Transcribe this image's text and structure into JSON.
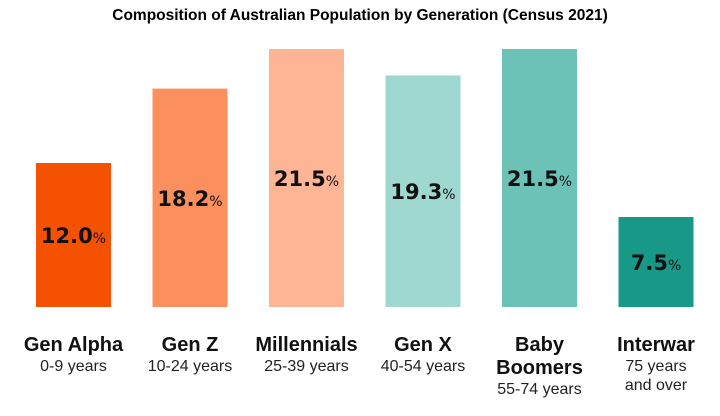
{
  "chart_data": {
    "type": "bar",
    "title": "Composition of Australian Population by Generation (Census 2021)",
    "categories": [
      "Gen Alpha",
      "Gen Z",
      "Millennials",
      "Gen X",
      "Baby Boomers",
      "Interwar"
    ],
    "sublabels": [
      "0-9 years",
      "10-24 years",
      "25-39 years",
      "40-54 years",
      "55-74 years",
      "75 years and over"
    ],
    "values": [
      12.0,
      18.2,
      21.5,
      19.3,
      21.5,
      7.5
    ],
    "data_labels": [
      "12.0",
      "18.2",
      "21.5",
      "19.3",
      "21.5",
      "7.5"
    ],
    "unit": "%",
    "colors": [
      "#f45100",
      "#fc8f5e",
      "#fdb596",
      "#9ed8d0",
      "#6cc2b7",
      "#189987"
    ],
    "xlabel": "",
    "ylabel": "",
    "ylim": [
      0,
      22
    ],
    "grid": false,
    "legend": "none"
  }
}
